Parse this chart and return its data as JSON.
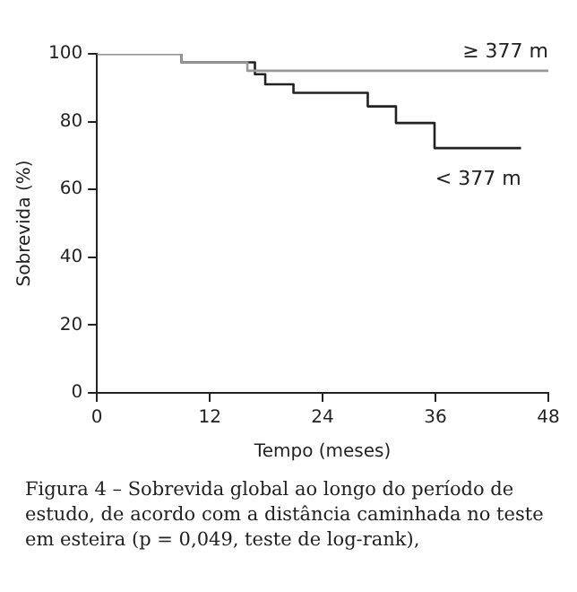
{
  "chart_data": {
    "type": "step",
    "xlabel": "Tempo (meses)",
    "ylabel": "Sobrevida (%)",
    "annotations": [
      "Figura 4 – Sobrevida global ao longo do período de estudo, de acordo com a distância caminhada no teste em esteira (p = 0,049, teste de log-rank),"
    ],
    "xlim": [
      0,
      48
    ],
    "xticks": [
      0,
      12,
      24,
      36,
      48
    ],
    "ylim": [
      0,
      100
    ],
    "yticks": [
      0,
      20,
      40,
      60,
      80,
      100
    ],
    "grid": false,
    "legend": false,
    "marker": "none",
    "line_style": "solid",
    "series": [
      {
        "name": "≥ 377 m",
        "color": "#999999",
        "x": [
          0,
          9,
          16,
          48
        ],
        "values": [
          100,
          97.5,
          95,
          95
        ]
      },
      {
        "name": "< 377 m",
        "color": "#222222",
        "x": [
          0,
          9,
          16.8,
          17.9,
          20.9,
          28.8,
          31.8,
          35.9,
          45.1
        ],
        "values": [
          100,
          97.5,
          94,
          91,
          88.5,
          84.5,
          79.6,
          72.2,
          72.2
        ]
      }
    ]
  }
}
